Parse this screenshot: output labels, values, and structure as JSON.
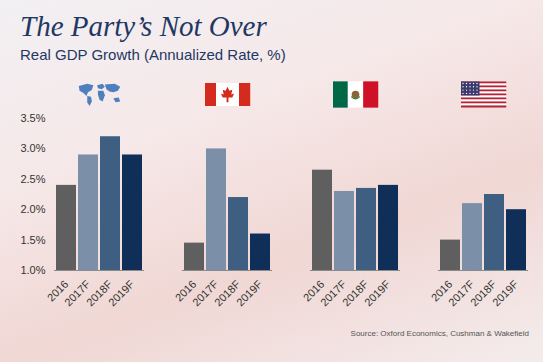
{
  "chart_data": {
    "type": "bar",
    "title": "The Party’s Not Over",
    "subtitle": "Real GDP Growth (Annualized Rate, %)",
    "source": "Source: Oxford Economics, Cushman & Wakefield",
    "categories": [
      null,
      null,
      null,
      null
    ],
    "series": [
      {
        "name": "2016",
        "color": "#5f5f5f",
        "values": [
          2.4,
          1.45,
          2.65,
          1.5
        ]
      },
      {
        "name": "2017F",
        "color": "#7b8fa8",
        "values": [
          2.9,
          3.0,
          2.3,
          2.1
        ]
      },
      {
        "name": "2018F",
        "color": "#3e5f82",
        "values": [
          3.2,
          2.2,
          2.35,
          2.25
        ]
      },
      {
        "name": "2019F",
        "color": "#0f2f58",
        "values": [
          2.9,
          1.6,
          2.4,
          2.0
        ]
      }
    ],
    "ylim": [
      1,
      3.5
    ],
    "yticks": [
      {
        "value": 1,
        "label": "1.0%"
      },
      {
        "value": 1.5,
        "label": "1.5%"
      },
      {
        "value": 2,
        "label": "2.0%"
      },
      {
        "value": 2.5,
        "label": "2.5%"
      },
      {
        "value": 3,
        "label": "3.0%"
      },
      {
        "value": 3.5,
        "label": "3.5%"
      }
    ],
    "grid": false
  }
}
